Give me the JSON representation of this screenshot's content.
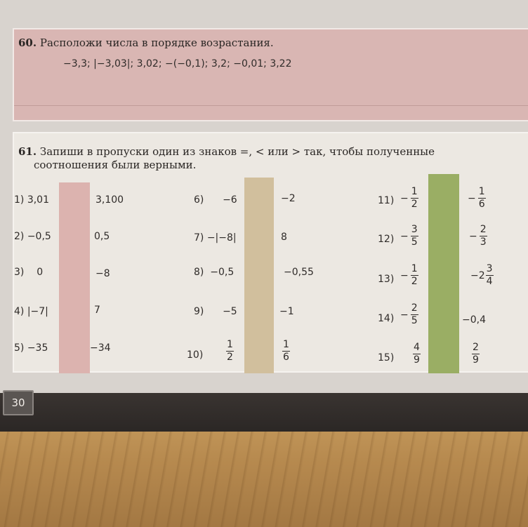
{
  "task60": {
    "number": "60.",
    "text": "Расположи числа в порядке возрастания.",
    "numbers": "−3,3;  |−3,03|;  3,02;  −(−0,1);  3,2;  −0,01;  3,22"
  },
  "task61": {
    "number": "61.",
    "text_line1": "Запиши в пропуски один из знаков =, < или > так, чтобы полученные",
    "text_line2": "соотношения были верными.",
    "col1": [
      {
        "label": "1)",
        "left": "3,01",
        "right": "3,100"
      },
      {
        "label": "2)",
        "left": "−0,5",
        "right": "0,5"
      },
      {
        "label": "3)",
        "left": "0",
        "right": "−8"
      },
      {
        "label": "4)",
        "left": "|−7|",
        "right": "7"
      },
      {
        "label": "5)",
        "left": "−35",
        "right": "−34"
      }
    ],
    "col2": [
      {
        "label": "6)",
        "left": "−6",
        "right": "−2"
      },
      {
        "label": "7)",
        "left": "−|−8|",
        "right": "8"
      },
      {
        "label": "8)",
        "left": "−0,5",
        "right": "−0,55"
      },
      {
        "label": "9)",
        "left": "−5",
        "right": "−1"
      },
      {
        "label": "10)",
        "left_num": "1",
        "left_den": "2",
        "right_num": "1",
        "right_den": "6"
      }
    ],
    "col3": [
      {
        "label": "11)",
        "left_sign": "−",
        "left_num": "1",
        "left_den": "2",
        "right_sign": "−",
        "right_num": "1",
        "right_den": "6"
      },
      {
        "label": "12)",
        "left_sign": "−",
        "left_num": "3",
        "left_den": "5",
        "right_sign": "−",
        "right_num": "2",
        "right_den": "3"
      },
      {
        "label": "13)",
        "left_sign": "−",
        "left_num": "1",
        "left_den": "2",
        "right_sign": "−2",
        "right_num": "3",
        "right_den": "4"
      },
      {
        "label": "14)",
        "left_sign": "−",
        "left_num": "2",
        "left_den": "5",
        "right": "−0,4"
      },
      {
        "label": "15)",
        "left_num": "4",
        "left_den": "9",
        "right_num": "2",
        "right_den": "9"
      }
    ]
  },
  "page_number": "30",
  "colors": {
    "task60_bg": "#d9b6b3",
    "gap_pink": "#dcb3af",
    "gap_tan": "#d1bf9d",
    "gap_green": "#9aae64"
  }
}
